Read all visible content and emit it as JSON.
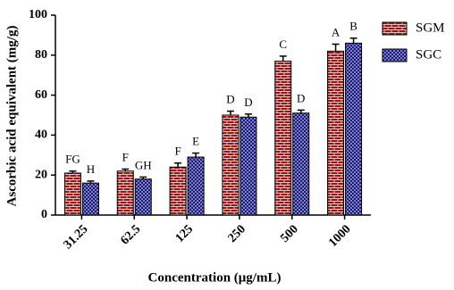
{
  "chart_data": {
    "type": "bar",
    "x_label": "Concentration (μg/mL)",
    "y_label": "Ascorbic acid equivalent (mg/g)",
    "categories": [
      "31.25",
      "62.5",
      "125",
      "250",
      "500",
      "1000"
    ],
    "series": [
      {
        "name": "SGM",
        "color": "#8b1a1a",
        "values": [
          21,
          22,
          24,
          50,
          77,
          82
        ],
        "errors": [
          1,
          1,
          2,
          2,
          2.5,
          3.5
        ],
        "letters": [
          "FG",
          "F",
          "F",
          "D",
          "C",
          "A"
        ]
      },
      {
        "name": "SGC",
        "color": "#1a1a7a",
        "values": [
          16,
          18,
          29,
          49,
          51,
          86
        ],
        "errors": [
          1,
          1,
          2,
          1.5,
          1.5,
          2.5
        ],
        "letters": [
          "H",
          "GH",
          "E",
          "D",
          "D",
          "B"
        ]
      }
    ],
    "ylim": [
      0,
      100
    ],
    "yticks": [
      0,
      20,
      40,
      60,
      80,
      100
    ],
    "legend": "top-right"
  }
}
